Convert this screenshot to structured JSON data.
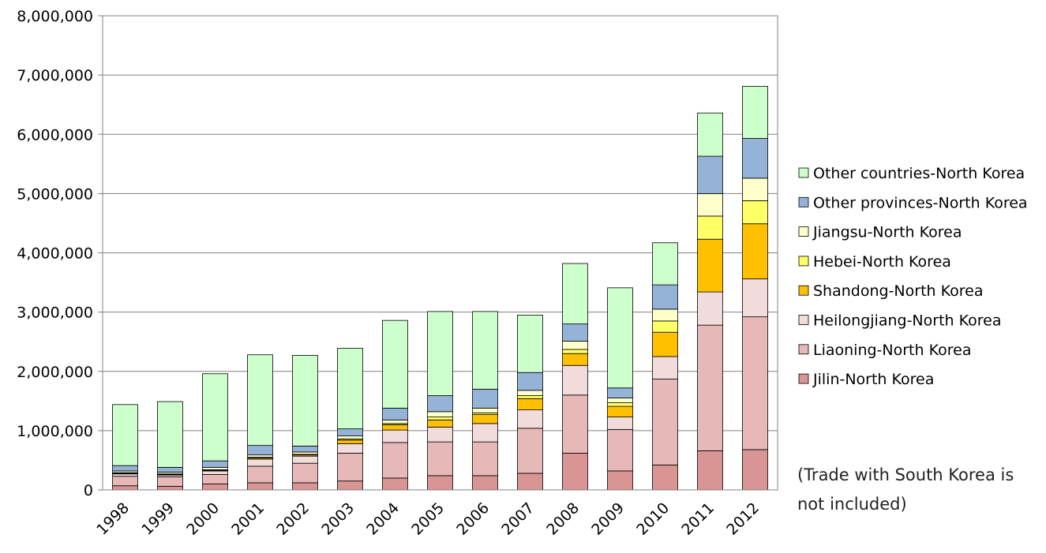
{
  "chart_data": {
    "type": "bar",
    "stacked": true,
    "categories": [
      "1998",
      "1999",
      "2000",
      "2001",
      "2002",
      "2003",
      "2004",
      "2005",
      "2006",
      "2007",
      "2008",
      "2009",
      "2010",
      "2011",
      "2012"
    ],
    "ylim": [
      0,
      8000000
    ],
    "yticks": [
      0,
      1000000,
      2000000,
      3000000,
      4000000,
      5000000,
      6000000,
      7000000,
      8000000
    ],
    "ytick_labels": [
      "0",
      "1,000,000",
      "2,000,000",
      "3,000,000",
      "4,000,000",
      "5,000,000",
      "6,000,000",
      "7,000,000",
      "8,000,000"
    ],
    "grid": true,
    "legend_position": "right",
    "title": "",
    "xlabel": "",
    "ylabel": "",
    "series": [
      {
        "name": "Jilin-North Korea",
        "color": "#d99594",
        "values": [
          70000,
          60000,
          100000,
          120000,
          120000,
          150000,
          200000,
          240000,
          240000,
          280000,
          620000,
          320000,
          420000,
          660000,
          680000
        ]
      },
      {
        "name": "Liaoning-North Korea",
        "color": "#e6b8b7",
        "values": [
          160000,
          160000,
          160000,
          280000,
          330000,
          470000,
          600000,
          570000,
          570000,
          760000,
          980000,
          700000,
          1450000,
          2120000,
          2240000
        ]
      },
      {
        "name": "Heilongjiang-North Korea",
        "color": "#f2dcdb",
        "values": [
          40000,
          30000,
          60000,
          120000,
          120000,
          160000,
          210000,
          250000,
          310000,
          310000,
          500000,
          210000,
          380000,
          560000,
          640000
        ]
      },
      {
        "name": "Shandong-North Korea",
        "color": "#ffc000",
        "values": [
          10000,
          10000,
          10000,
          20000,
          20000,
          60000,
          90000,
          120000,
          150000,
          190000,
          200000,
          180000,
          410000,
          890000,
          930000
        ]
      },
      {
        "name": "Hebei-North Korea",
        "color": "#ffff66",
        "values": [
          10000,
          10000,
          10000,
          10000,
          10000,
          20000,
          20000,
          50000,
          30000,
          50000,
          70000,
          60000,
          190000,
          390000,
          390000
        ]
      },
      {
        "name": "Jiangsu-North Korea",
        "color": "#ffffcc",
        "values": [
          30000,
          30000,
          40000,
          40000,
          40000,
          50000,
          60000,
          90000,
          80000,
          90000,
          140000,
          80000,
          200000,
          380000,
          380000
        ]
      },
      {
        "name": "Other provinces-North Korea",
        "color": "#95b3d7",
        "values": [
          90000,
          80000,
          110000,
          160000,
          100000,
          120000,
          200000,
          270000,
          320000,
          300000,
          290000,
          170000,
          410000,
          630000,
          670000
        ]
      },
      {
        "name": "Other countries-North Korea",
        "color": "#ccffcc",
        "values": [
          1030000,
          1110000,
          1470000,
          1530000,
          1530000,
          1360000,
          1480000,
          1420000,
          1310000,
          970000,
          1020000,
          1690000,
          710000,
          730000,
          880000
        ]
      }
    ]
  },
  "note": "(Trade with South Korea is not included)"
}
